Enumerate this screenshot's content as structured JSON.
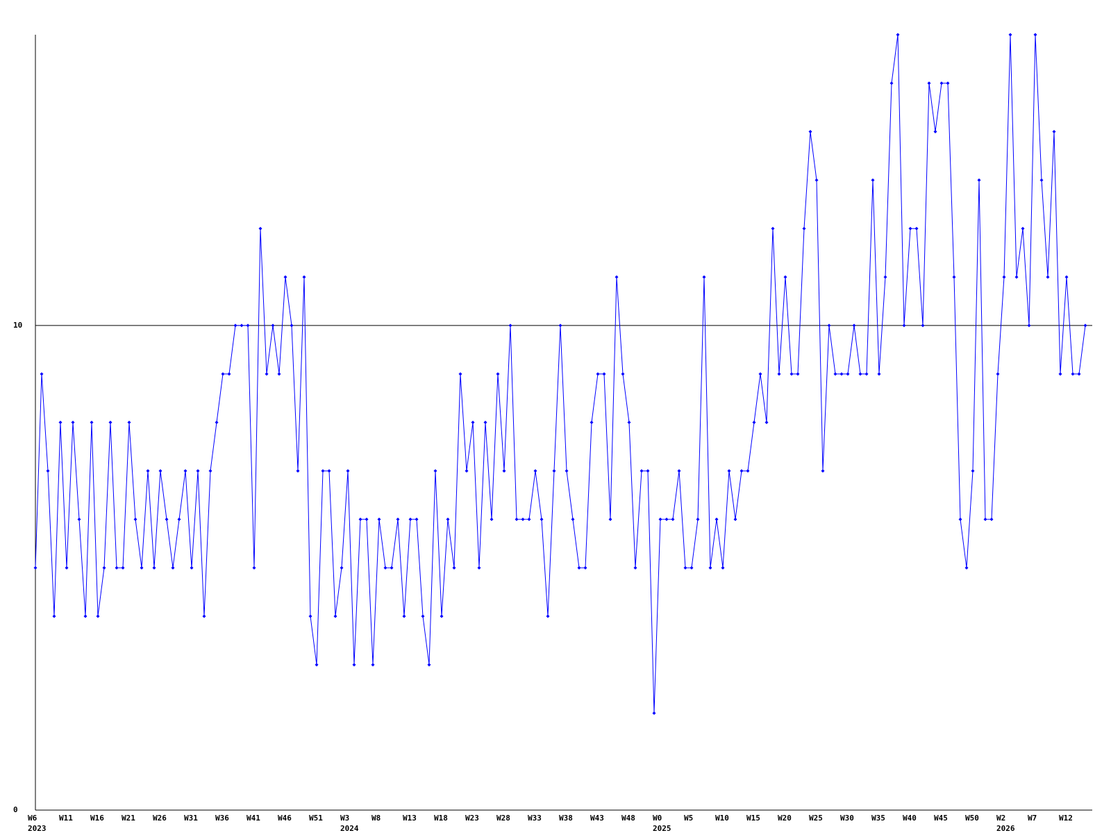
{
  "chart_data": {
    "type": "line",
    "categories": [
      "W6",
      null,
      null,
      null,
      null,
      "W11",
      null,
      null,
      null,
      null,
      "W16",
      null,
      null,
      null,
      null,
      "W21",
      null,
      null,
      null,
      null,
      "W26",
      null,
      null,
      null,
      null,
      "W31",
      null,
      null,
      null,
      null,
      "W36",
      null,
      null,
      null,
      null,
      "W41",
      null,
      null,
      null,
      null,
      "W46",
      null,
      null,
      null,
      null,
      "W51",
      null,
      null,
      null,
      null,
      "W3",
      null,
      null,
      null,
      null,
      "W8",
      null,
      null,
      null,
      null,
      "W13",
      null,
      null,
      null,
      null,
      "W18",
      null,
      null,
      null,
      null,
      "W23",
      null,
      null,
      null,
      null,
      "W28",
      null,
      null,
      null,
      null,
      "W33",
      null,
      null,
      null,
      null,
      "W38",
      null,
      null,
      null,
      null,
      "W43",
      null,
      null,
      null,
      null,
      "W48",
      null,
      null,
      null,
      null,
      "W0",
      null,
      null,
      null,
      null,
      "W5",
      null,
      null,
      null,
      null,
      "W10",
      null,
      null,
      null,
      null,
      "W15",
      null,
      null,
      null,
      null,
      "W20",
      null,
      null,
      null,
      null,
      "W25",
      null,
      null,
      null,
      null,
      "W30",
      null,
      null,
      null,
      null,
      "W35",
      null,
      null,
      null,
      null,
      "W40",
      null,
      null,
      null,
      null,
      "W45",
      null,
      null,
      null,
      null,
      "W50",
      null,
      null,
      null,
      null,
      "W2",
      null,
      null,
      null,
      null,
      "W7",
      null,
      null,
      null,
      null,
      "W12",
      null,
      null,
      null
    ],
    "x_year_labels": [
      "2023",
      null,
      null,
      null,
      null,
      null,
      null,
      null,
      null,
      null,
      null,
      null,
      null,
      null,
      null,
      null,
      null,
      null,
      null,
      null,
      null,
      null,
      null,
      null,
      null,
      null,
      null,
      null,
      null,
      null,
      null,
      null,
      null,
      null,
      null,
      null,
      null,
      null,
      null,
      null,
      null,
      null,
      null,
      null,
      null,
      null,
      null,
      null,
      null,
      null,
      "2024",
      null,
      null,
      null,
      null,
      null,
      null,
      null,
      null,
      null,
      null,
      null,
      null,
      null,
      null,
      null,
      null,
      null,
      null,
      null,
      null,
      null,
      null,
      null,
      null,
      null,
      null,
      null,
      null,
      null,
      null,
      null,
      null,
      null,
      null,
      null,
      null,
      null,
      null,
      null,
      null,
      null,
      null,
      null,
      null,
      null,
      null,
      null,
      null,
      null,
      "2025",
      null,
      null,
      null,
      null,
      null,
      null,
      null,
      null,
      null,
      null,
      null,
      null,
      null,
      null,
      null,
      null,
      null,
      null,
      null,
      null,
      null,
      null,
      null,
      null,
      null,
      null,
      null,
      null,
      null,
      null,
      null,
      null,
      null,
      null,
      null,
      null,
      null,
      null,
      null,
      null,
      null,
      null,
      null,
      null,
      null,
      null,
      null,
      null,
      null,
      null,
      null,
      null,
      null,
      null,
      "2026",
      null,
      null,
      null,
      null,
      null,
      null,
      null,
      null,
      null,
      null,
      null,
      null,
      null
    ],
    "series": [
      {
        "color": "#0000ff",
        "values": [
          5,
          9,
          7,
          4,
          8,
          5,
          8,
          6,
          4,
          8,
          4,
          5,
          8,
          5,
          5,
          8,
          6,
          5,
          7,
          5,
          7,
          6,
          5,
          6,
          7,
          5,
          7,
          4,
          7,
          8,
          9,
          9,
          10,
          10,
          10,
          5,
          12,
          9,
          10,
          9,
          11,
          10,
          7,
          11,
          4,
          3,
          7,
          7,
          4,
          5,
          7,
          3,
          6,
          6,
          3,
          6,
          5,
          5,
          6,
          4,
          6,
          6,
          4,
          3,
          7,
          4,
          6,
          5,
          9,
          7,
          8,
          5,
          8,
          6,
          9,
          7,
          10,
          6,
          6,
          6,
          7,
          6,
          4,
          7,
          10,
          7,
          6,
          5,
          5,
          8,
          9,
          9,
          6,
          11,
          9,
          8,
          5,
          7,
          7,
          2,
          6,
          6,
          6,
          7,
          5,
          5,
          6,
          11,
          5,
          6,
          5,
          7,
          6,
          7,
          7,
          8,
          9,
          8,
          12,
          9,
          11,
          9,
          9,
          12,
          14,
          13,
          7,
          10,
          9,
          9,
          9,
          10,
          9,
          9,
          13,
          9,
          11,
          15,
          16,
          10,
          12,
          12,
          10,
          15,
          14,
          15,
          15,
          11,
          6,
          5,
          7,
          13,
          6,
          6,
          9,
          11,
          16,
          11,
          12,
          10,
          16,
          13,
          11,
          14,
          9,
          11,
          9,
          9,
          10
        ]
      }
    ],
    "ylim": [
      0,
      16
    ],
    "yticks": [
      0,
      10
    ],
    "grid": true
  }
}
